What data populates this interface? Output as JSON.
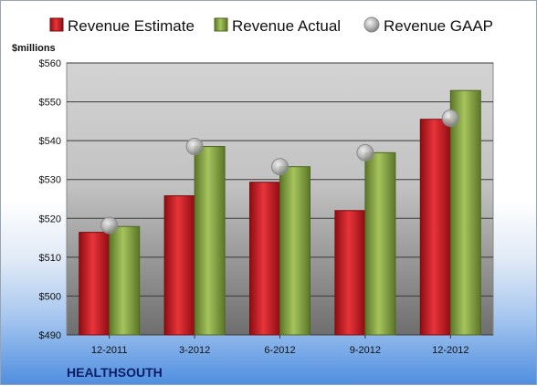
{
  "colors": {
    "estimate": "#c8161e",
    "actual": "#7f9e3c",
    "gaap": "#a9a9a9",
    "company": "#0a1c66"
  },
  "chart_data": {
    "type": "bar",
    "ylabel": "$millions",
    "categories": [
      "12-2011",
      "3-2012",
      "6-2012",
      "9-2012",
      "12-2012"
    ],
    "series": [
      {
        "name": "Revenue Estimate",
        "values": [
          516.4,
          525.8,
          529.3,
          522.0,
          545.5
        ]
      },
      {
        "name": "Revenue Actual",
        "values": [
          517.9,
          538.5,
          533.3,
          536.9,
          552.9
        ]
      },
      {
        "name": "Revenue GAAP",
        "values": [
          518.2,
          538.5,
          533.3,
          536.9,
          545.8
        ]
      }
    ],
    "ylim": [
      490,
      560
    ],
    "yticks": [
      490,
      500,
      510,
      520,
      530,
      540,
      550,
      560
    ],
    "ytick_labels": [
      "$490",
      "$500",
      "$510",
      "$520",
      "$530",
      "$540",
      "$550",
      "$560"
    ],
    "grid": true,
    "legend": "top",
    "company": "HEALTHSOUTH"
  }
}
